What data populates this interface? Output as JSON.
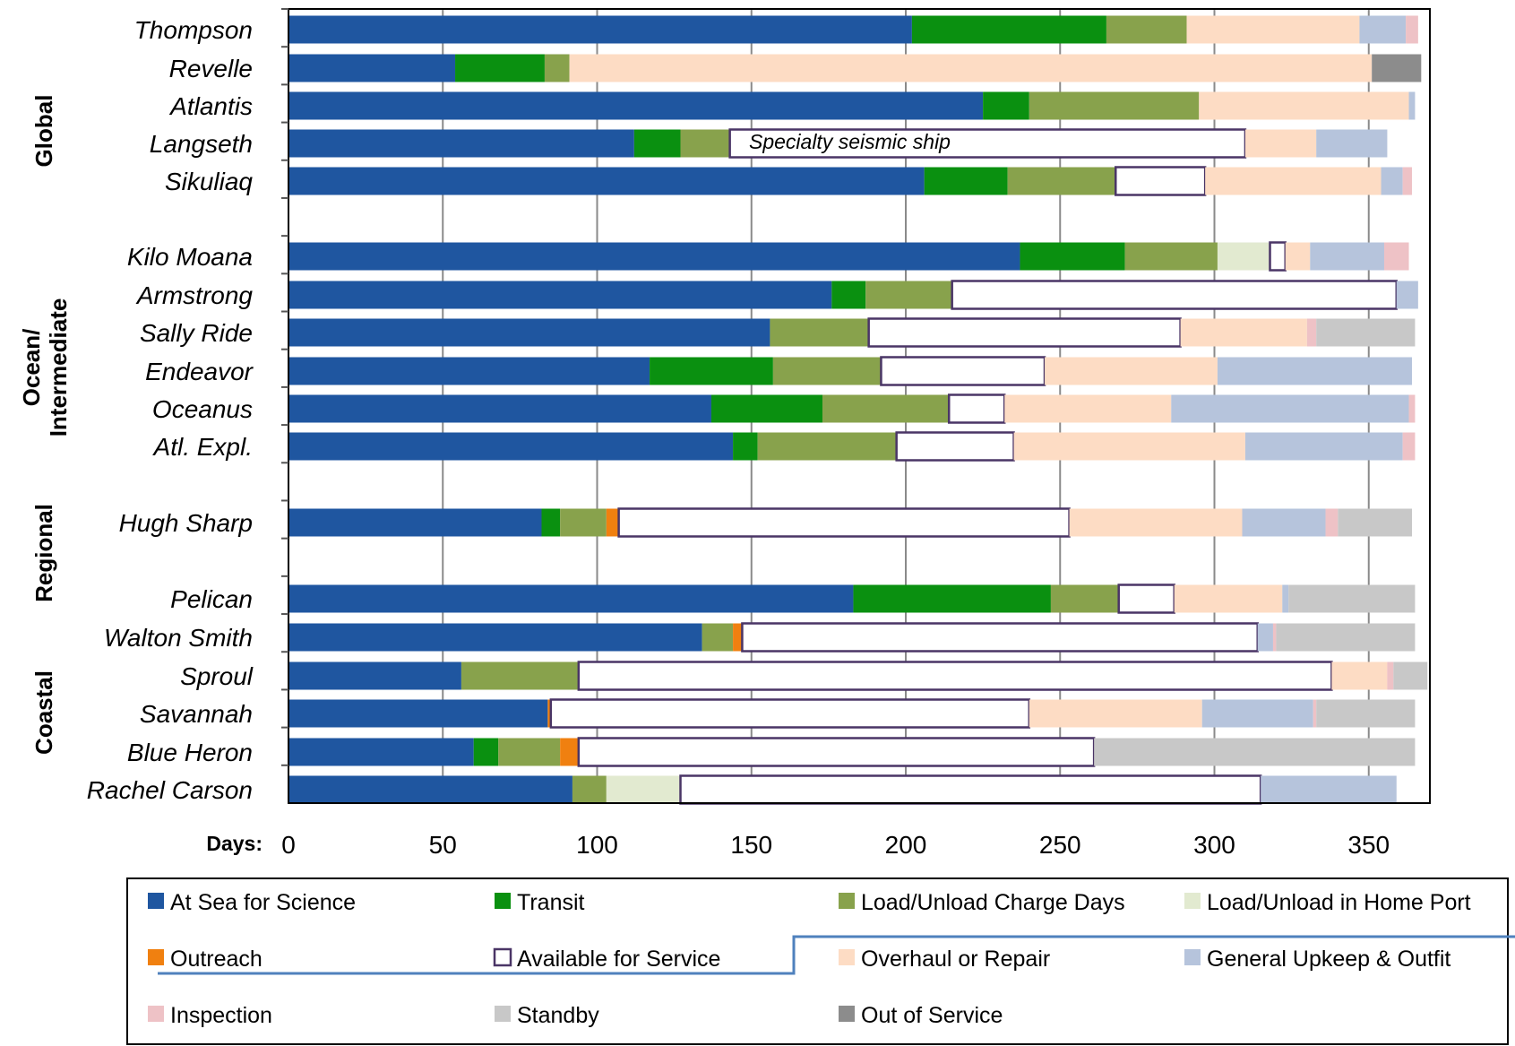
{
  "chart_data": {
    "type": "bar",
    "orientation": "horizontal",
    "stacked": true,
    "xlabel": "Days:",
    "xlim": [
      0,
      370
    ],
    "xticks": [
      0,
      50,
      100,
      150,
      200,
      250,
      300,
      350
    ],
    "grid": true,
    "legend_position": "bottom",
    "annotation": "Specialty seismic ship",
    "groups": [
      {
        "label": "Global",
        "ships": [
          "Thompson",
          "Revelle",
          "Atlantis",
          "Langseth",
          "Sikuliaq"
        ]
      },
      {
        "label": "Ocean/ Intermediate",
        "ships": [
          "Kilo Moana",
          "Armstrong",
          "Sally Ride",
          "Endeavor",
          "Oceanus",
          "Atl. Expl."
        ]
      },
      {
        "label": "Regional",
        "ships": [
          "Hugh Sharp"
        ]
      },
      {
        "label": "Coastal",
        "ships": [
          "Pelican",
          "Walton Smith",
          "Sproul",
          "Savannah",
          "Blue Heron",
          "Rachel Carson"
        ]
      }
    ],
    "categories": [
      "Thompson",
      "Revelle",
      "Atlantis",
      "Langseth",
      "Sikuliaq",
      "Kilo Moana",
      "Armstrong",
      "Sally Ride",
      "Endeavor",
      "Oceanus",
      "Atl. Expl.",
      "Hugh Sharp",
      "Pelican",
      "Walton Smith",
      "Sproul",
      "Savannah",
      "Blue Heron",
      "Rachel Carson"
    ],
    "series": [
      {
        "name": "At Sea for Science",
        "color": "#1f56a0",
        "values": [
          202,
          54,
          225,
          112,
          206,
          237,
          176,
          156,
          117,
          137,
          144,
          82,
          183,
          134,
          56,
          84,
          60,
          92
        ]
      },
      {
        "name": "Transit",
        "color": "#0a9010",
        "values": [
          63,
          29,
          15,
          15,
          27,
          34,
          11,
          0,
          40,
          36,
          8,
          6,
          64,
          0,
          0,
          0,
          8,
          0
        ]
      },
      {
        "name": "Load/Unload Charge Days",
        "color": "#88a24c",
        "values": [
          26,
          8,
          55,
          16,
          35,
          30,
          28,
          32,
          35,
          41,
          45,
          15,
          22,
          10,
          38,
          0,
          20,
          11
        ]
      },
      {
        "name": "Load/Unload in Home Port",
        "color": "#e2ead0",
        "values": [
          0,
          0,
          0,
          0,
          0,
          17,
          0,
          0,
          0,
          0,
          0,
          0,
          0,
          0,
          0,
          0,
          0,
          24
        ]
      },
      {
        "name": "Outreach",
        "color": "#f08010",
        "values": [
          0,
          0,
          0,
          0,
          0,
          0,
          0,
          0,
          0,
          0,
          0,
          4,
          0,
          3,
          0,
          1,
          6,
          0
        ]
      },
      {
        "name": "Available for Service",
        "color": "#ffffff",
        "values": [
          0,
          0,
          0,
          167,
          29,
          5,
          144,
          101,
          53,
          18,
          38,
          146,
          18,
          167,
          244,
          155,
          167,
          188
        ]
      },
      {
        "name": "Overhaul or Repair",
        "color": "#fddcc4",
        "values": [
          56,
          260,
          68,
          23,
          57,
          8,
          0,
          41,
          56,
          54,
          75,
          56,
          35,
          0,
          18,
          56,
          0,
          0
        ]
      },
      {
        "name": "General Upkeep & Outfit",
        "color": "#b6c4dc",
        "values": [
          15,
          0,
          2,
          23,
          7,
          24,
          7,
          0,
          63,
          77,
          51,
          27,
          2,
          5,
          0,
          36,
          0,
          44
        ]
      },
      {
        "name": "Inspection",
        "color": "#eec2c6",
        "values": [
          4,
          0,
          0,
          0,
          3,
          8,
          0,
          3,
          0,
          2,
          4,
          4,
          0,
          1,
          2,
          1,
          0,
          0
        ]
      },
      {
        "name": "Standby",
        "color": "#c8c8c8",
        "values": [
          0,
          0,
          0,
          0,
          0,
          0,
          0,
          32,
          0,
          0,
          0,
          24,
          41,
          45,
          11,
          32,
          104,
          0
        ]
      },
      {
        "name": "Out of Service",
        "color": "#8c8c8c",
        "values": [
          0,
          16,
          0,
          0,
          0,
          0,
          0,
          0,
          0,
          0,
          0,
          0,
          0,
          0,
          0,
          0,
          0,
          0
        ]
      }
    ]
  }
}
